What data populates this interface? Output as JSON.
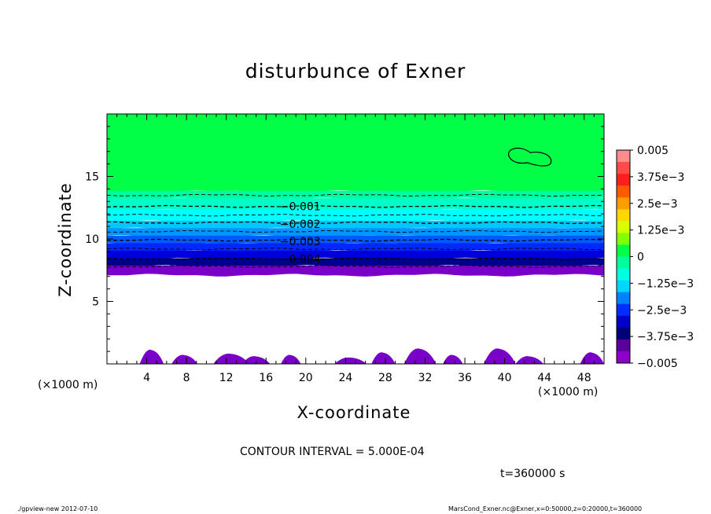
{
  "chart_data": {
    "type": "heatmap",
    "title": "disturbunce of Exner",
    "xlabel": "X-coordinate",
    "ylabel": "Z-coordinate",
    "x_scale_label": "(×1000 m)",
    "xlim": [
      0,
      50
    ],
    "ylim": [
      0,
      20
    ],
    "x_ticks": [
      "4",
      "8",
      "12",
      "16",
      "20",
      "24",
      "28",
      "32",
      "36",
      "40",
      "44",
      "48"
    ],
    "y_ticks": [
      "5",
      "10",
      "15"
    ],
    "colorbar": {
      "tick_labels": [
        "0.005",
        "3.75e-3",
        "2.5e-3",
        "1.25e-3",
        "0",
        "-1.25e-3",
        "-2.5e-3",
        "-3.75e-3",
        "-0.005"
      ],
      "colors": [
        "#ff8c8c",
        "#ff4a4a",
        "#ff1e1e",
        "#ff5a00",
        "#ff9c00",
        "#ffd700",
        "#d7ff00",
        "#82ff00",
        "#00ff46",
        "#00ff9c",
        "#00ffe1",
        "#00d7ff",
        "#0082ff",
        "#002dff",
        "#0000c8",
        "#000078",
        "#5a009c",
        "#8c00c8"
      ]
    },
    "contour_labels": [
      "-0.001",
      "-0.002",
      "-0.003",
      "-0.004"
    ],
    "contour_levels_z": [
      13.5,
      12.6,
      11.9,
      11.3,
      10.6,
      9.9,
      9.2,
      8.4,
      7.8
    ],
    "contour_interval": "CONTOUR INTERVAL = 5.000E-04",
    "time": "t=360000 s",
    "layers": [
      {
        "z_bottom": 13.8,
        "z_top": 20,
        "color": "#00ff46"
      },
      {
        "z_bottom": 13.2,
        "z_top": 13.8,
        "color": "#00ff9c"
      },
      {
        "z_bottom": 12.3,
        "z_top": 13.2,
        "color": "#00ffc8"
      },
      {
        "z_bottom": 11.4,
        "z_top": 12.3,
        "color": "#00ffff"
      },
      {
        "z_bottom": 10.8,
        "z_top": 11.4,
        "color": "#00c8ff"
      },
      {
        "z_bottom": 10.2,
        "z_top": 10.8,
        "color": "#0096ff"
      },
      {
        "z_bottom": 9.6,
        "z_top": 10.2,
        "color": "#005aff"
      },
      {
        "z_bottom": 9.0,
        "z_top": 9.6,
        "color": "#0028ff"
      },
      {
        "z_bottom": 8.4,
        "z_top": 9.0,
        "color": "#0000dc"
      },
      {
        "z_bottom": 7.8,
        "z_top": 8.4,
        "color": "#00008c"
      },
      {
        "z_bottom": 7.1,
        "z_top": 7.8,
        "color": "#7800c8"
      }
    ]
  },
  "footer": {
    "left": "./gpview-new  2012-07-10",
    "right": "MarsCond_Exner.nc@Exner,x=0:50000,z=0:20000,t=360000"
  }
}
